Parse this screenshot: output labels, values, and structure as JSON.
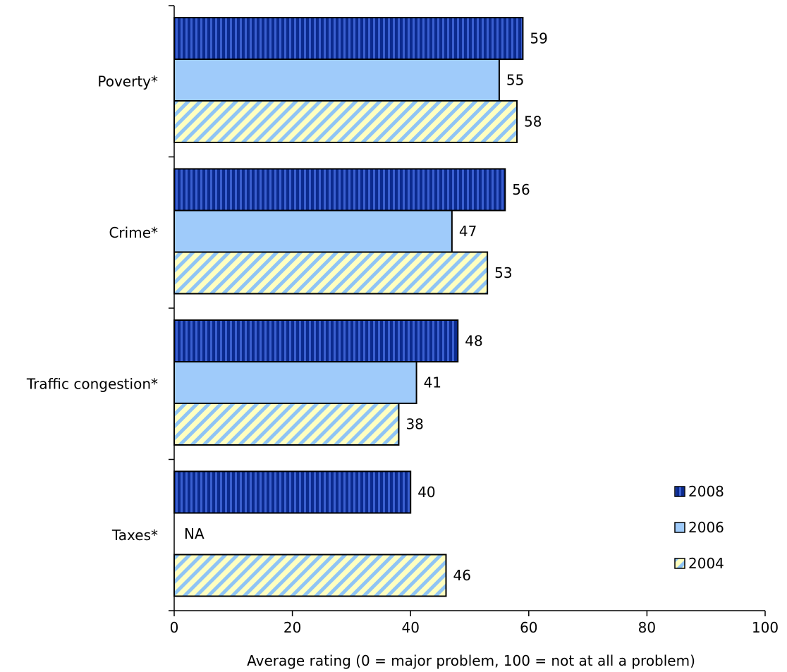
{
  "chart_data": {
    "type": "bar",
    "orientation": "horizontal",
    "categories": [
      "Poverty*",
      "Crime*",
      "Traffic congestion*",
      "Taxes*"
    ],
    "series": [
      {
        "name": "2008",
        "values": [
          59,
          56,
          48,
          40
        ],
        "value_labels": [
          "59",
          "56",
          "48",
          "40"
        ],
        "color": "#0B2A8E",
        "pattern": "vertical-stripes"
      },
      {
        "name": "2006",
        "values": [
          55,
          47,
          41,
          null
        ],
        "value_labels": [
          "55",
          "47",
          "41",
          "NA"
        ],
        "color": "#9FCBFA",
        "pattern": "solid"
      },
      {
        "name": "2004",
        "values": [
          58,
          53,
          38,
          46
        ],
        "value_labels": [
          "58",
          "53",
          "38",
          "46"
        ],
        "color": "#FFFFC0",
        "stripe_color": "#8FC4F5",
        "pattern": "diagonal-stripes"
      }
    ],
    "xlabel": "Average rating (0 = major problem, 100 = not at all a problem)",
    "ylabel": "",
    "xlim": [
      0,
      100
    ],
    "xticks": [
      0,
      20,
      40,
      60,
      80,
      100
    ],
    "legend_position": "bottom-right",
    "grid": false
  }
}
